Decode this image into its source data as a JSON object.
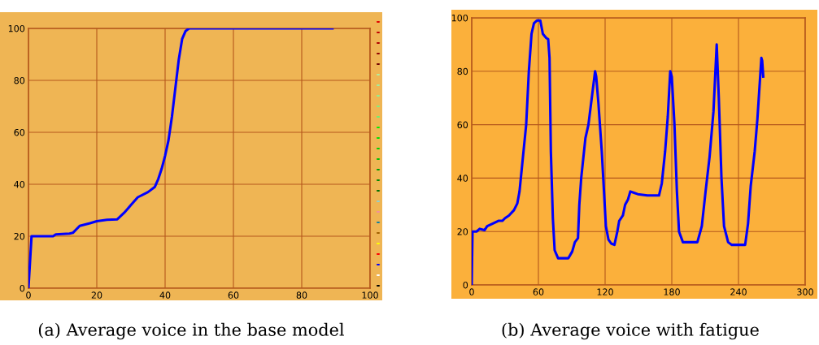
{
  "chart_data": [
    {
      "type": "line",
      "annotations": [
        "(a) Average voice in the base model"
      ],
      "xlim": [
        0,
        100
      ],
      "ylim": [
        0,
        100
      ],
      "xticks": [
        0,
        20,
        40,
        60,
        80,
        100
      ],
      "yticks": [
        0,
        20,
        40,
        60,
        80,
        100
      ],
      "grid": true,
      "series": [
        {
          "color": "#0000ff",
          "x": [
            0,
            0.9,
            7.2,
            8,
            12,
            13,
            15,
            18,
            20,
            23,
            26,
            28,
            30,
            32,
            35,
            37,
            38,
            39,
            40,
            41,
            42,
            43,
            44,
            45,
            46,
            47,
            89
          ],
          "values": [
            0,
            20,
            20,
            20.7,
            21,
            21.3,
            24,
            25,
            25.8,
            26.3,
            26.5,
            29,
            32,
            35,
            37,
            39,
            42,
            46,
            51,
            57,
            66,
            77,
            88,
            96,
            99,
            100,
            100
          ]
        }
      ]
    },
    {
      "type": "line",
      "annotations": [
        "(b) Average voice with fatigue"
      ],
      "xlim": [
        0,
        300
      ],
      "ylim": [
        0,
        100
      ],
      "xticks": [
        0,
        60,
        120,
        180,
        240,
        300
      ],
      "yticks": [
        0,
        20,
        40,
        60,
        80,
        100
      ],
      "grid": true,
      "series": [
        {
          "color": "#0000ff",
          "x": [
            0,
            0.7,
            4.3,
            7.2,
            11.5,
            13.9,
            19,
            24,
            27.5,
            30,
            33.5,
            38,
            41,
            43,
            45.4,
            49,
            51.4,
            53.8,
            56,
            58.6,
            61.7,
            64,
            67,
            68.8,
            70,
            71.2,
            73,
            74.6,
            77.7,
            87,
            90.4,
            92.8,
            95.6,
            96.8,
            98.5,
            102.3,
            105,
            108,
            111,
            112,
            114,
            117,
            119,
            120.7,
            123,
            125.5,
            128.4,
            131,
            132.7,
            136,
            138,
            140.6,
            142.7,
            146,
            149.4,
            158,
            168.5,
            171,
            174,
            176.4,
            178.6,
            180,
            182.4,
            184.6,
            186.5,
            190,
            203,
            207,
            210.4,
            214,
            217.5,
            220.4,
            222.3,
            224.7,
            227,
            230.7,
            234,
            246,
            248.6,
            251,
            254.6,
            257,
            260.6,
            261.3,
            262.3
          ],
          "values": [
            0,
            20,
            20,
            21,
            20.5,
            22,
            23,
            24,
            24,
            25,
            26,
            28,
            30.5,
            35,
            45,
            60,
            80,
            94,
            98,
            99,
            99,
            94,
            92.5,
            92,
            85,
            50,
            25,
            13,
            10,
            10,
            12.5,
            16,
            17.5,
            30,
            40,
            55,
            60,
            70,
            80,
            78,
            68,
            50,
            35,
            22,
            17,
            15.5,
            15,
            20,
            24,
            26,
            30,
            32,
            35,
            34.5,
            34,
            33.5,
            33.5,
            38,
            50,
            63,
            80,
            78,
            60,
            35,
            20,
            16,
            16,
            22,
            35,
            48,
            65,
            90,
            70,
            40,
            22,
            16,
            15,
            15,
            23,
            37,
            50,
            62,
            85,
            84,
            78
          ]
        }
      ]
    }
  ]
}
